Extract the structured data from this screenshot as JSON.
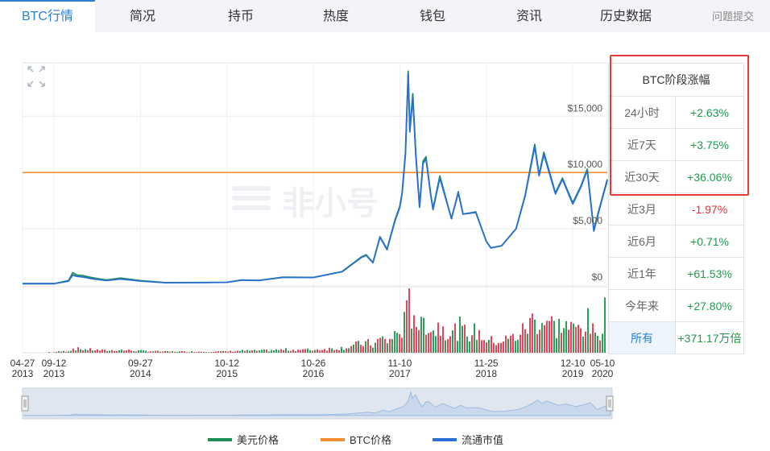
{
  "tabs": [
    "BTC行情",
    "简况",
    "持币",
    "热度",
    "钱包",
    "资讯",
    "历史数据"
  ],
  "feedback_label": "问题提交",
  "watermark": "非小号",
  "colors": {
    "usd_price": "#1c8f55",
    "btc_price": "#f28a2e",
    "market_cap": "#2a6fd4",
    "highlight": "#e23a3a",
    "positive": "#1e9a4e",
    "negative": "#e0303a"
  },
  "panel": {
    "title": "BTC阶段涨幅",
    "rows": [
      {
        "label": "24小时",
        "value": "+2.63%",
        "dir": "up"
      },
      {
        "label": "近7天",
        "value": "+3.75%",
        "dir": "up"
      },
      {
        "label": "近30天",
        "value": "+36.06%",
        "dir": "up"
      },
      {
        "label": "近3月",
        "value": "-1.97%",
        "dir": "down"
      },
      {
        "label": "近6月",
        "value": "+0.71%",
        "dir": "up"
      },
      {
        "label": "近1年",
        "value": "+61.53%",
        "dir": "up"
      },
      {
        "label": "今年来",
        "value": "+27.80%",
        "dir": "up"
      },
      {
        "label": "所有",
        "value": "+371.17万倍",
        "dir": "up"
      }
    ]
  },
  "legend": [
    {
      "label": "美元价格",
      "color": "#1c8f55"
    },
    {
      "label": "BTC价格",
      "color": "#f28a2e"
    },
    {
      "label": "流通市值",
      "color": "#2a6fd4"
    }
  ],
  "chart_data": {
    "type": "line",
    "y_ticks": [
      {
        "value": 0,
        "label": "$0"
      },
      {
        "value": 5000,
        "label": "$5,000"
      },
      {
        "value": 10000,
        "label": "$10,000"
      },
      {
        "value": 15000,
        "label": "$15,000"
      }
    ],
    "ylim": [
      0,
      19600
    ],
    "xlim": [
      "2013-04-27",
      "2020-05-10"
    ],
    "x_ticks": [
      {
        "date": "2013-04-27",
        "label": "04-27",
        "year": "2013"
      },
      {
        "date": "2013-09-12",
        "label": "09-12",
        "year": "2013"
      },
      {
        "date": "2014-09-27",
        "label": "09-27",
        "year": "2014"
      },
      {
        "date": "2015-10-12",
        "label": "10-12",
        "year": "2015"
      },
      {
        "date": "2016-10-26",
        "label": "10-26",
        "year": "2016"
      },
      {
        "date": "2017-11-10",
        "label": "11-10",
        "year": "2017"
      },
      {
        "date": "2018-11-25",
        "label": "11-25",
        "year": "2018"
      },
      {
        "date": "2019-12-10",
        "label": "12-10",
        "year": "2019"
      },
      {
        "date": "2020-05-10",
        "label": "05-10",
        "year": "2020"
      }
    ],
    "btc_price_line": 10000,
    "series": [
      {
        "name": "美元价格",
        "points": [
          [
            "2013-04-27",
            130
          ],
          [
            "2013-09-12",
            130
          ],
          [
            "2013-11-15",
            400
          ],
          [
            "2013-12-04",
            1100
          ],
          [
            "2013-12-20",
            900
          ],
          [
            "2014-01-15",
            850
          ],
          [
            "2014-03-01",
            650
          ],
          [
            "2014-05-01",
            450
          ],
          [
            "2014-07-01",
            620
          ],
          [
            "2014-09-27",
            400
          ],
          [
            "2015-01-15",
            220
          ],
          [
            "2015-06-01",
            230
          ],
          [
            "2015-10-12",
            250
          ],
          [
            "2015-12-15",
            450
          ],
          [
            "2016-03-01",
            420
          ],
          [
            "2016-06-15",
            700
          ],
          [
            "2016-10-26",
            680
          ],
          [
            "2017-01-01",
            960
          ],
          [
            "2017-03-01",
            1200
          ],
          [
            "2017-05-25",
            2500
          ],
          [
            "2017-06-15",
            2700
          ],
          [
            "2017-07-15",
            2000
          ],
          [
            "2017-08-15",
            4300
          ],
          [
            "2017-09-15",
            3200
          ],
          [
            "2017-10-20",
            5800
          ],
          [
            "2017-11-10",
            7000
          ],
          [
            "2017-11-20",
            8200
          ],
          [
            "2017-12-05",
            11800
          ],
          [
            "2017-12-17",
            19000
          ],
          [
            "2017-12-24",
            13800
          ],
          [
            "2018-01-06",
            17000
          ],
          [
            "2018-01-20",
            11500
          ],
          [
            "2018-02-05",
            7000
          ],
          [
            "2018-02-20",
            11000
          ],
          [
            "2018-03-05",
            11400
          ],
          [
            "2018-03-25",
            8200
          ],
          [
            "2018-04-05",
            6800
          ],
          [
            "2018-05-05",
            9700
          ],
          [
            "2018-06-25",
            5900
          ],
          [
            "2018-07-25",
            8300
          ],
          [
            "2018-08-15",
            6300
          ],
          [
            "2018-10-10",
            6500
          ],
          [
            "2018-11-25",
            3900
          ],
          [
            "2018-12-15",
            3300
          ],
          [
            "2019-02-01",
            3500
          ],
          [
            "2019-04-05",
            5000
          ],
          [
            "2019-05-15",
            8000
          ],
          [
            "2019-06-26",
            12500
          ],
          [
            "2019-07-15",
            9800
          ],
          [
            "2019-08-05",
            11800
          ],
          [
            "2019-09-25",
            8200
          ],
          [
            "2019-10-26",
            9500
          ],
          [
            "2019-12-10",
            7300
          ],
          [
            "2020-01-15",
            8800
          ],
          [
            "2020-02-12",
            10300
          ],
          [
            "2020-03-12",
            4900
          ],
          [
            "2020-04-05",
            6800
          ],
          [
            "2020-05-10",
            9400
          ]
        ]
      },
      {
        "name": "流通市值",
        "points": [
          [
            "2013-04-27",
            130
          ],
          [
            "2013-09-12",
            130
          ],
          [
            "2013-11-15",
            350
          ],
          [
            "2013-12-04",
            900
          ],
          [
            "2013-12-20",
            780
          ],
          [
            "2014-01-15",
            720
          ],
          [
            "2014-03-01",
            560
          ],
          [
            "2014-05-01",
            400
          ],
          [
            "2014-07-01",
            540
          ],
          [
            "2014-09-27",
            360
          ],
          [
            "2015-01-15",
            210
          ],
          [
            "2015-06-01",
            220
          ],
          [
            "2015-10-12",
            245
          ],
          [
            "2015-12-15",
            440
          ],
          [
            "2016-03-01",
            410
          ],
          [
            "2016-06-15",
            690
          ],
          [
            "2016-10-26",
            670
          ],
          [
            "2017-01-01",
            950
          ],
          [
            "2017-03-01",
            1180
          ],
          [
            "2017-05-25",
            2450
          ],
          [
            "2017-06-15",
            2650
          ],
          [
            "2017-07-15",
            1980
          ],
          [
            "2017-08-15",
            4250
          ],
          [
            "2017-09-15",
            3150
          ],
          [
            "2017-10-20",
            5700
          ],
          [
            "2017-11-10",
            6900
          ],
          [
            "2017-11-20",
            8100
          ],
          [
            "2017-12-05",
            11600
          ],
          [
            "2017-12-17",
            18800
          ],
          [
            "2017-12-24",
            13600
          ],
          [
            "2018-01-06",
            16600
          ],
          [
            "2018-01-20",
            11300
          ],
          [
            "2018-02-05",
            6900
          ],
          [
            "2018-02-20",
            10800
          ],
          [
            "2018-03-05",
            11200
          ],
          [
            "2018-03-25",
            8100
          ],
          [
            "2018-04-05",
            6700
          ],
          [
            "2018-05-05",
            9500
          ],
          [
            "2018-06-25",
            5900
          ],
          [
            "2018-07-25",
            8200
          ],
          [
            "2018-08-15",
            6300
          ],
          [
            "2018-10-10",
            6450
          ],
          [
            "2018-11-25",
            3900
          ],
          [
            "2018-12-15",
            3300
          ],
          [
            "2019-02-01",
            3500
          ],
          [
            "2019-04-05",
            5000
          ],
          [
            "2019-05-15",
            7900
          ],
          [
            "2019-06-26",
            12300
          ],
          [
            "2019-07-15",
            9700
          ],
          [
            "2019-08-05",
            11600
          ],
          [
            "2019-09-25",
            8100
          ],
          [
            "2019-10-26",
            9400
          ],
          [
            "2019-12-10",
            7200
          ],
          [
            "2020-01-15",
            8700
          ],
          [
            "2020-02-12",
            10200
          ],
          [
            "2020-03-12",
            4800
          ],
          [
            "2020-04-05",
            6700
          ],
          [
            "2020-05-10",
            9300
          ]
        ]
      }
    ],
    "volume_note": "volume bars"
  }
}
